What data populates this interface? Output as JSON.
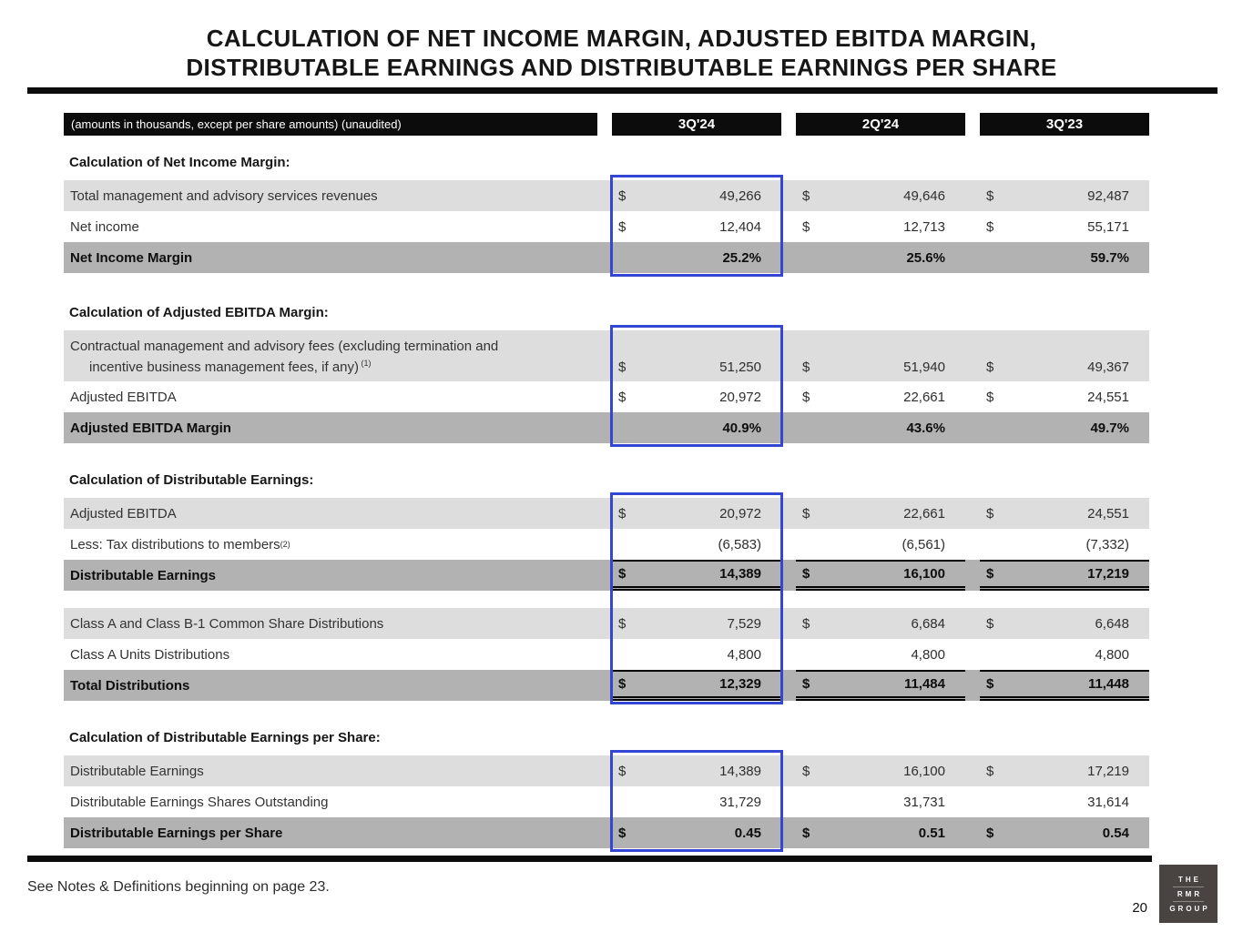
{
  "title": {
    "line1": "CALCULATION OF NET INCOME MARGIN, ADJUSTED EBITDA MARGIN,",
    "line2": "DISTRIBUTABLE EARNINGS AND DISTRIBUTABLE EARNINGS PER SHARE"
  },
  "highlight_color": "#3546d3",
  "colors": {
    "row_light": "#dddddd",
    "row_dark": "#b2b2b2",
    "bar_black": "#0c0c0c",
    "logo_background": "#494341"
  },
  "table": {
    "header_label": "(amounts in thousands, except per share amounts) (unaudited)",
    "columns": [
      "3Q'24",
      "2Q'24",
      "3Q'23"
    ],
    "sections": [
      {
        "heading": "Calculation of Net Income Margin:",
        "box_group": 0,
        "rows": [
          {
            "label": "Total management and advisory services revenues",
            "dollar": true,
            "shade": "light",
            "values": [
              "49,266",
              "49,646",
              "92,487"
            ]
          },
          {
            "label": "Net income",
            "dollar": true,
            "shade": "white",
            "values": [
              "12,404",
              "12,713",
              "55,171"
            ]
          },
          {
            "label": "Net Income Margin",
            "bold": true,
            "shade": "dark",
            "values": [
              "25.2%",
              "25.6%",
              "59.7%"
            ]
          }
        ]
      },
      {
        "heading": "Calculation of Adjusted EBITDA Margin:",
        "box_group": 1,
        "rows": [
          {
            "label_lines": [
              "Contractual management and advisory fees (excluding termination and",
              "incentive business management fees, if any)"
            ],
            "sup": "(1)",
            "tall": true,
            "dollar": true,
            "shade": "light",
            "values": [
              "51,250",
              "51,940",
              "49,367"
            ]
          },
          {
            "label": "Adjusted EBITDA",
            "dollar": true,
            "shade": "white",
            "values": [
              "20,972",
              "22,661",
              "24,551"
            ]
          },
          {
            "label": "Adjusted EBITDA Margin",
            "bold": true,
            "shade": "dark",
            "values": [
              "40.9%",
              "43.6%",
              "49.7%"
            ]
          }
        ]
      },
      {
        "heading": "Calculation of Distributable Earnings:",
        "box_group": 2,
        "rows": [
          {
            "label": "Adjusted EBITDA",
            "dollar": true,
            "shade": "light",
            "values": [
              "20,972",
              "22,661",
              "24,551"
            ]
          },
          {
            "label": "Less: Tax distributions to members",
            "sup": "(2)",
            "shade": "white",
            "values": [
              "(6,583)",
              "(6,561)",
              "(7,332)"
            ]
          },
          {
            "label": "Distributable Earnings",
            "bold": true,
            "dollar": true,
            "shade": "dark",
            "rule_top": true,
            "rule_double_bottom": true,
            "values": [
              "14,389",
              "16,100",
              "17,219"
            ]
          }
        ]
      },
      {
        "heading": null,
        "box_group": 2,
        "rows": [
          {
            "label": "Class A and Class B-1 Common Share Distributions",
            "dollar": true,
            "shade": "light",
            "values": [
              "7,529",
              "6,684",
              "6,648"
            ]
          },
          {
            "label": "Class A Units Distributions",
            "shade": "white",
            "values": [
              "4,800",
              "4,800",
              "4,800"
            ]
          },
          {
            "label": "Total Distributions",
            "bold": true,
            "dollar": true,
            "shade": "dark",
            "rule_top": true,
            "rule_double_bottom": true,
            "values": [
              "12,329",
              "11,484",
              "11,448"
            ]
          }
        ]
      },
      {
        "heading": "Calculation of Distributable Earnings per Share:",
        "box_group": 3,
        "rows": [
          {
            "label": "Distributable Earnings",
            "dollar": true,
            "shade": "light",
            "values": [
              "14,389",
              "16,100",
              "17,219"
            ]
          },
          {
            "label": "Distributable Earnings Shares Outstanding",
            "shade": "white",
            "values": [
              "31,729",
              "31,731",
              "31,614"
            ]
          },
          {
            "label": "Distributable Earnings per Share",
            "bold": true,
            "dollar": true,
            "shade": "dark",
            "values": [
              "0.45",
              "0.51",
              "0.54"
            ]
          }
        ]
      }
    ]
  },
  "footer": {
    "note": "See Notes & Definitions beginning on page 23.",
    "page_number": "20",
    "logo": {
      "line1": "THE",
      "line2": "RMR",
      "line3": "GROUP"
    }
  }
}
